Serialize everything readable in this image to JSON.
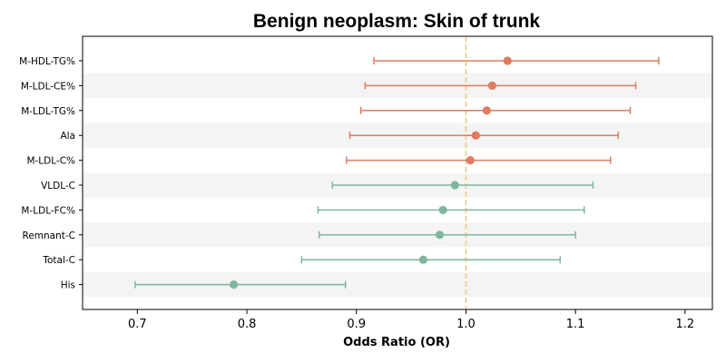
{
  "chart_data": {
    "type": "forest",
    "title": "Benign neoplasm: Skin of trunk",
    "xlabel": "Odds Ratio (OR)",
    "xlim": [
      0.65,
      1.225
    ],
    "xticks": [
      "0.7",
      "0.8",
      "0.9",
      "1.0",
      "1.1",
      "1.2"
    ],
    "xtick_values": [
      0.7,
      0.8,
      0.9,
      1.0,
      1.1,
      1.2
    ],
    "reference_line": 1.0,
    "colors": {
      "risk": "#e07b5f",
      "protective": "#7fb69e",
      "reference": "#f0c78a",
      "band": "#f4f4f4"
    },
    "rows": [
      {
        "label": "M-HDL-TG%",
        "or": 1.038,
        "lo": 0.916,
        "hi": 1.176
      },
      {
        "label": "M-LDL-CE%",
        "or": 1.024,
        "lo": 0.908,
        "hi": 1.155
      },
      {
        "label": "M-LDL-TG%",
        "or": 1.019,
        "lo": 0.904,
        "hi": 1.15
      },
      {
        "label": "Ala",
        "or": 1.009,
        "lo": 0.894,
        "hi": 1.139
      },
      {
        "label": "M-LDL-C%",
        "or": 1.004,
        "lo": 0.891,
        "hi": 1.132
      },
      {
        "label": "VLDL-C",
        "or": 0.99,
        "lo": 0.878,
        "hi": 1.116
      },
      {
        "label": "M-LDL-FC%",
        "or": 0.979,
        "lo": 0.865,
        "hi": 1.108
      },
      {
        "label": "Remnant-C",
        "or": 0.976,
        "lo": 0.866,
        "hi": 1.1
      },
      {
        "label": "Total-C",
        "or": 0.961,
        "lo": 0.85,
        "hi": 1.086
      },
      {
        "label": "His",
        "or": 0.788,
        "lo": 0.698,
        "hi": 0.89
      }
    ]
  }
}
